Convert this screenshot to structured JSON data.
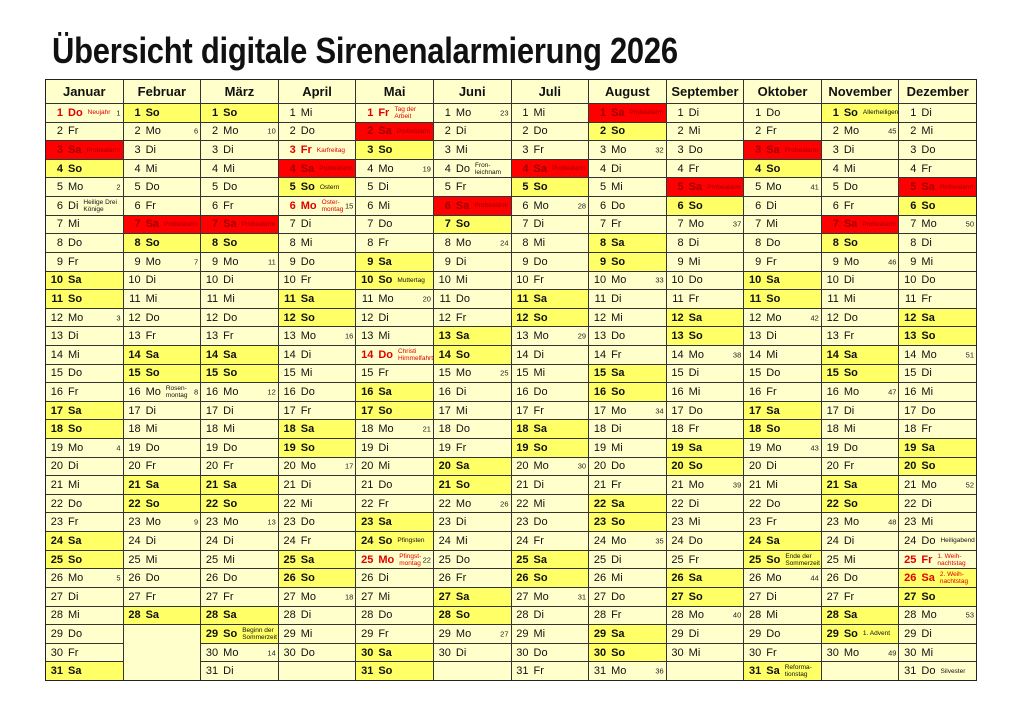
{
  "title": "Übersicht digitale Sirenenalarmierung 2026",
  "colors": {
    "weekday": "#ffffcc",
    "weekend": "#ffff66",
    "probealarm": "#ff0000",
    "holiday_text": "#e00000"
  },
  "weekdays": [
    "Mo",
    "Di",
    "Mi",
    "Do",
    "Fr",
    "Sa",
    "So"
  ],
  "months": [
    {
      "name": "Januar",
      "start": 3,
      "length": 31,
      "notes": {
        "1": {
          "text": "Neujahr",
          "type": "holiday"
        },
        "3": {
          "text": "Probealarm",
          "type": "probealarm"
        },
        "6": {
          "text": "Heilige Drei\nKönige",
          "type": "note"
        }
      },
      "kw": {
        "1": "1",
        "5": "2",
        "12": "3",
        "19": "4",
        "26": "5"
      }
    },
    {
      "name": "Februar",
      "start": 6,
      "length": 28,
      "notes": {
        "7": {
          "text": "Probealarm",
          "type": "probealarm"
        },
        "16": {
          "text": "Rosen-\nmontag",
          "type": "note"
        }
      },
      "kw": {
        "2": "6",
        "9": "7",
        "16": "8",
        "23": "9"
      }
    },
    {
      "name": "März",
      "start": 6,
      "length": 31,
      "notes": {
        "7": {
          "text": "Probealarm",
          "type": "probealarm"
        },
        "29": {
          "text": "Beginn der\nSommerzeit",
          "type": "note"
        }
      },
      "kw": {
        "2": "10",
        "9": "11",
        "16": "12",
        "23": "13",
        "30": "14"
      }
    },
    {
      "name": "April",
      "start": 2,
      "length": 30,
      "notes": {
        "3": {
          "text": "Karfreitag",
          "type": "holiday"
        },
        "4": {
          "text": "Probealarm",
          "type": "probealarm"
        },
        "5": {
          "text": "Ostern",
          "type": "note"
        },
        "6": {
          "text": "Oster-\nmontag",
          "type": "holiday"
        }
      },
      "kw": {
        "6": "15",
        "13": "16",
        "20": "17",
        "27": "18"
      }
    },
    {
      "name": "Mai",
      "start": 4,
      "length": 31,
      "notes": {
        "1": {
          "text": "Tag der\nArbeit",
          "type": "holiday"
        },
        "2": {
          "text": "Probealarm",
          "type": "probealarm"
        },
        "10": {
          "text": "Muttertag",
          "type": "note"
        },
        "14": {
          "text": "Christi\nHimmelfahrt",
          "type": "holiday"
        },
        "24": {
          "text": "Pfingsten",
          "type": "note"
        },
        "25": {
          "text": "Pfingst-\nmontag",
          "type": "holiday"
        }
      },
      "kw": {
        "4": "19",
        "11": "20",
        "18": "21",
        "25": "22"
      }
    },
    {
      "name": "Juni",
      "start": 0,
      "length": 30,
      "notes": {
        "4": {
          "text": "Fron-\nleichnam",
          "type": "note"
        },
        "6": {
          "text": "Probealarm",
          "type": "probealarm"
        }
      },
      "kw": {
        "1": "23",
        "8": "24",
        "15": "25",
        "22": "26",
        "29": "27"
      }
    },
    {
      "name": "Juli",
      "start": 2,
      "length": 31,
      "notes": {
        "4": {
          "text": "Probealarm",
          "type": "probealarm"
        }
      },
      "kw": {
        "6": "28",
        "13": "29",
        "20": "30",
        "27": "31"
      }
    },
    {
      "name": "August",
      "start": 5,
      "length": 31,
      "notes": {
        "1": {
          "text": "Probealarm",
          "type": "probealarm"
        }
      },
      "kw": {
        "3": "32",
        "10": "33",
        "17": "34",
        "24": "35",
        "31": "36"
      }
    },
    {
      "name": "September",
      "start": 1,
      "length": 30,
      "notes": {
        "5": {
          "text": "Probealarm",
          "type": "probealarm"
        }
      },
      "kw": {
        "7": "37",
        "14": "38",
        "21": "39",
        "28": "40"
      }
    },
    {
      "name": "Oktober",
      "start": 3,
      "length": 31,
      "notes": {
        "3": {
          "text": "Probealarm",
          "type": "probealarm"
        },
        "25": {
          "text": "Ende der\nSommerzeit",
          "type": "note"
        },
        "31": {
          "text": "Reforma-\ntionstag",
          "type": "note"
        }
      },
      "kw": {
        "5": "41",
        "12": "42",
        "19": "43",
        "26": "44"
      }
    },
    {
      "name": "November",
      "start": 6,
      "length": 30,
      "notes": {
        "1": {
          "text": "Allerheiligen",
          "type": "note"
        },
        "7": {
          "text": "Probealarm",
          "type": "probealarm"
        },
        "29": {
          "text": "1. Advent",
          "type": "note"
        }
      },
      "kw": {
        "2": "45",
        "9": "46",
        "16": "47",
        "23": "48",
        "30": "49"
      }
    },
    {
      "name": "Dezember",
      "start": 1,
      "length": 31,
      "notes": {
        "5": {
          "text": "Probealarm",
          "type": "probealarm"
        },
        "24": {
          "text": "Heiligabend",
          "type": "note"
        },
        "25": {
          "text": "1. Weih-\nnachtstag",
          "type": "holiday"
        },
        "26": {
          "text": "2. Weih-\nnachtstag",
          "type": "holiday"
        },
        "31": {
          "text": "Silvester",
          "type": "note"
        }
      },
      "kw": {
        "7": "50",
        "14": "51",
        "21": "52",
        "28": "53"
      }
    }
  ]
}
